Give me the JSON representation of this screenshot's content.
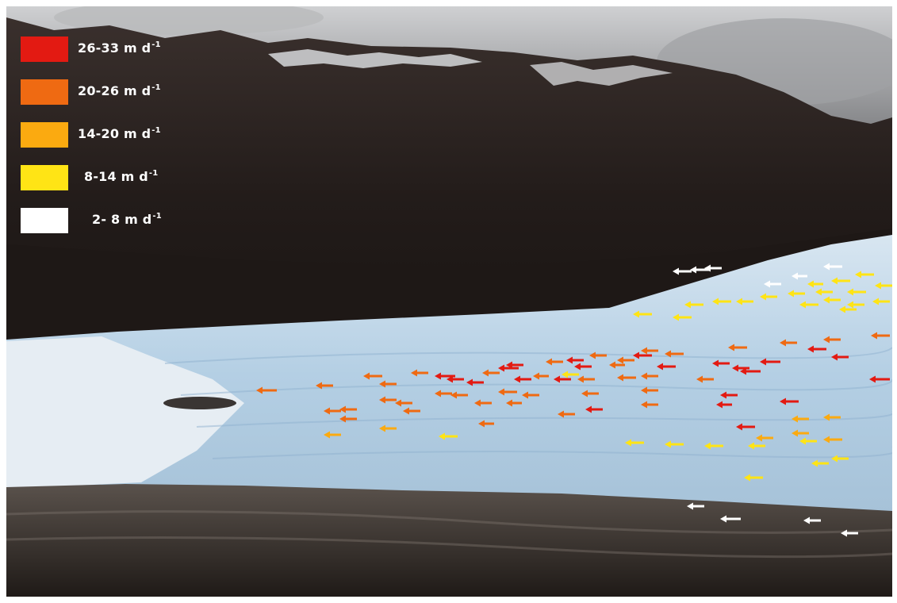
{
  "legend": {
    "items": [
      {
        "range": "26-33",
        "unit": "m d",
        "exp": "-1",
        "color": "#e31a12"
      },
      {
        "range": "20-26",
        "unit": "m d",
        "exp": "-1",
        "color": "#ef6a12"
      },
      {
        "range": "14-20",
        "unit": "m d",
        "exp": "-1",
        "color": "#fbaa10"
      },
      {
        "range": "8-14",
        "unit": "m d",
        "exp": "-1",
        "color": "#ffe415"
      },
      {
        "range": "2- 8",
        "unit": "m d",
        "exp": "-1",
        "color": "#ffffff"
      }
    ]
  },
  "colors": {
    "sky": "#8d8f92",
    "mountain": "#2a2220",
    "ice": "#bcd3e6",
    "moraine": "#4b4541"
  }
}
